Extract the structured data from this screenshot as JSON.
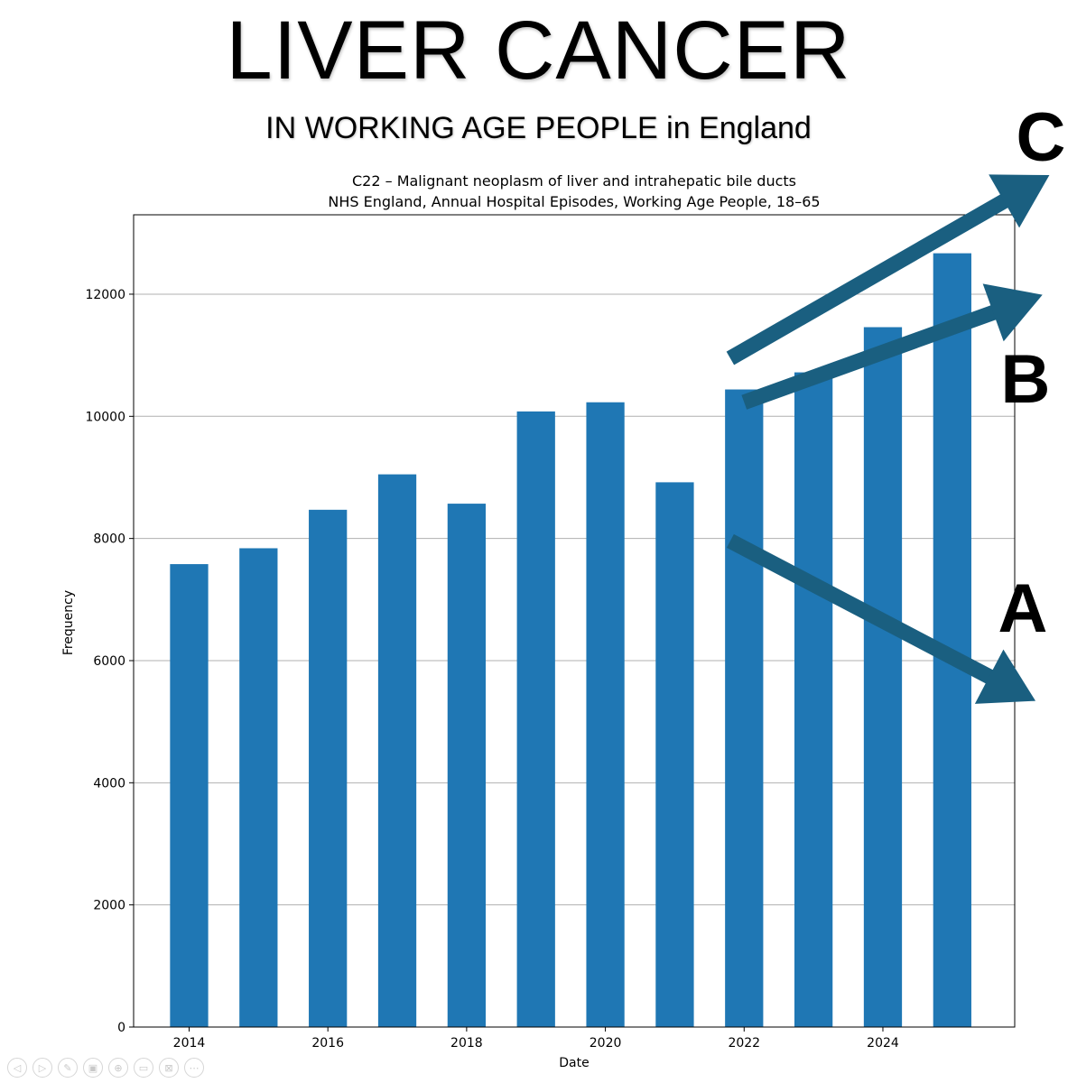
{
  "slide": {
    "title": "LIVER CANCER",
    "subtitle": "IN WORKING AGE PEOPLE in England"
  },
  "chart_data": {
    "type": "bar",
    "title": "C22 – Malignant neoplasm of liver and intrahepatic bile ducts",
    "subtitle": "NHS England, Annual Hospital Episodes, Working Age People, 18–65",
    "xlabel": "Date",
    "ylabel": "Frequency",
    "categories": [
      "2014",
      "2015",
      "2016",
      "2017",
      "2018",
      "2019",
      "2020",
      "2021",
      "2022",
      "2023",
      "2024",
      "2025"
    ],
    "x": [
      2014,
      2015,
      2016,
      2017,
      2018,
      2019,
      2020,
      2021,
      2022,
      2023,
      2024,
      2025
    ],
    "values": [
      7580,
      7840,
      8470,
      9050,
      8570,
      10080,
      10230,
      8920,
      10440,
      10720,
      11460,
      12670
    ],
    "xlim": [
      2013.2,
      2025.9
    ],
    "ylim": [
      0,
      13300
    ],
    "xticks": [
      2014,
      2016,
      2018,
      2020,
      2022,
      2024
    ],
    "yticks": [
      0,
      2000,
      4000,
      6000,
      8000,
      10000,
      12000
    ],
    "grid": "horizontal",
    "bar_color": "#1f77b4",
    "annotations": {
      "arrow_color": "#1a5f80",
      "arrows": [
        {
          "label": "C",
          "from": [
            2021.8,
            10950
          ],
          "to": [
            2026.4,
            13950
          ]
        },
        {
          "label": "B",
          "from": [
            2022.0,
            10230
          ],
          "to": [
            2026.3,
            11990
          ]
        },
        {
          "label": "A",
          "from": [
            2021.8,
            7960
          ],
          "to": [
            2026.2,
            5340
          ]
        }
      ]
    }
  },
  "playback": {
    "buttons": [
      {
        "name": "previous-icon",
        "glyph": "◁"
      },
      {
        "name": "next-icon",
        "glyph": "▷"
      },
      {
        "name": "pen-icon",
        "glyph": "✎"
      },
      {
        "name": "slides-icon",
        "glyph": "▣"
      },
      {
        "name": "zoom-icon",
        "glyph": "⊕"
      },
      {
        "name": "subtitles-icon",
        "glyph": "▭"
      },
      {
        "name": "camera-icon",
        "glyph": "⊠"
      },
      {
        "name": "more-icon",
        "glyph": "⋯"
      }
    ]
  }
}
